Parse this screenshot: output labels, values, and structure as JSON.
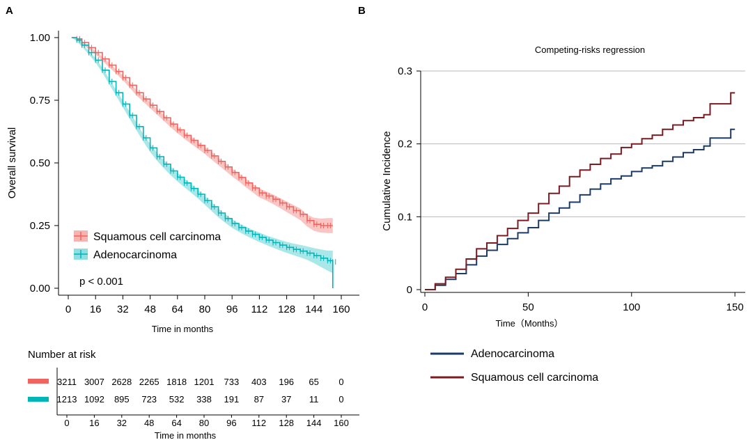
{
  "chart_data": [
    {
      "panel": "A",
      "type": "line",
      "subtype": "kaplan-meier",
      "title": "",
      "xlabel": "Time in months",
      "ylabel": "Overall survival",
      "xlim": [
        0,
        160
      ],
      "ylim": [
        0,
        1
      ],
      "xticks": [
        0,
        16,
        32,
        48,
        64,
        80,
        96,
        112,
        128,
        144,
        160
      ],
      "yticks": [
        0.0,
        0.25,
        0.5,
        0.75,
        1.0
      ],
      "yticklabels": [
        "0.00",
        "0.25",
        "0.50",
        "0.75",
        "1.00"
      ],
      "p_value_text": "p < 0.001",
      "series": [
        {
          "name": "Squamous cell carcinoma",
          "color": "#f0635e",
          "ci_color": "#f7b3b0",
          "x": [
            2,
            5,
            8,
            12,
            16,
            20,
            24,
            28,
            32,
            36,
            40,
            44,
            48,
            52,
            56,
            60,
            64,
            68,
            72,
            76,
            80,
            84,
            88,
            92,
            96,
            100,
            104,
            108,
            112,
            116,
            120,
            124,
            128,
            132,
            136,
            140,
            144,
            148,
            152,
            155
          ],
          "y": [
            1.0,
            0.995,
            0.98,
            0.96,
            0.94,
            0.915,
            0.89,
            0.865,
            0.84,
            0.81,
            0.78,
            0.755,
            0.73,
            0.705,
            0.68,
            0.655,
            0.632,
            0.61,
            0.59,
            0.57,
            0.55,
            0.528,
            0.506,
            0.484,
            0.462,
            0.442,
            0.42,
            0.4,
            0.38,
            0.368,
            0.355,
            0.34,
            0.325,
            0.31,
            0.295,
            0.27,
            0.255,
            0.25,
            0.25,
            0.25
          ],
          "ci_halfwidth": [
            0.0,
            0.004,
            0.005,
            0.006,
            0.007,
            0.008,
            0.009,
            0.009,
            0.01,
            0.01,
            0.011,
            0.011,
            0.012,
            0.012,
            0.012,
            0.013,
            0.013,
            0.013,
            0.014,
            0.014,
            0.014,
            0.015,
            0.015,
            0.015,
            0.016,
            0.016,
            0.017,
            0.017,
            0.018,
            0.018,
            0.019,
            0.02,
            0.021,
            0.022,
            0.023,
            0.024,
            0.026,
            0.028,
            0.03,
            0.03
          ]
        },
        {
          "name": "Adenocarcinoma",
          "color": "#00b4b8",
          "ci_color": "#8ddfe1",
          "x": [
            2,
            5,
            8,
            12,
            16,
            20,
            24,
            28,
            32,
            36,
            40,
            44,
            48,
            52,
            56,
            60,
            64,
            68,
            72,
            76,
            80,
            84,
            88,
            92,
            96,
            100,
            104,
            108,
            112,
            116,
            120,
            124,
            128,
            132,
            136,
            140,
            144,
            148,
            152,
            155,
            155
          ],
          "y": [
            1.0,
            0.99,
            0.97,
            0.94,
            0.91,
            0.87,
            0.825,
            0.78,
            0.735,
            0.69,
            0.645,
            0.6,
            0.56,
            0.525,
            0.495,
            0.468,
            0.443,
            0.42,
            0.398,
            0.375,
            0.35,
            0.325,
            0.3,
            0.278,
            0.258,
            0.242,
            0.228,
            0.215,
            0.203,
            0.192,
            0.182,
            0.172,
            0.163,
            0.155,
            0.148,
            0.14,
            0.13,
            0.12,
            0.11,
            0.105,
            0.0
          ],
          "ci_halfwidth": [
            0.0,
            0.005,
            0.006,
            0.007,
            0.009,
            0.01,
            0.011,
            0.012,
            0.013,
            0.014,
            0.015,
            0.015,
            0.016,
            0.016,
            0.016,
            0.017,
            0.017,
            0.017,
            0.017,
            0.017,
            0.017,
            0.017,
            0.017,
            0.017,
            0.017,
            0.017,
            0.018,
            0.018,
            0.019,
            0.019,
            0.02,
            0.021,
            0.022,
            0.023,
            0.025,
            0.027,
            0.03,
            0.035,
            0.04,
            0.045,
            0.0
          ]
        }
      ],
      "risk_table": {
        "title": "Number at risk",
        "xlabel": "Time in months",
        "times": [
          0,
          16,
          32,
          48,
          64,
          80,
          96,
          112,
          128,
          144,
          160
        ],
        "rows": [
          {
            "name": "Squamous cell carcinoma",
            "color": "#f0635e",
            "values": [
              "3211",
              "3007",
              "2628",
              "2265",
              "1818",
              "1201",
              "733",
              "403",
              "196",
              "65",
              "0"
            ]
          },
          {
            "name": "Adenocarcinoma",
            "color": "#00b4b8",
            "values": [
              "1213",
              "1092",
              "895",
              "723",
              "532",
              "338",
              "191",
              "87",
              "37",
              "11",
              "0"
            ]
          }
        ]
      }
    },
    {
      "panel": "B",
      "type": "line",
      "subtype": "step",
      "title": "Competing-risks regression",
      "xlabel": "Time（Months）",
      "ylabel": "Cumulative Incidence",
      "xlim": [
        0,
        155
      ],
      "ylim": [
        0,
        0.3
      ],
      "xticks": [
        0,
        50,
        100,
        150
      ],
      "yticks": [
        0,
        0.1,
        0.2,
        0.3
      ],
      "yticklabels": [
        "0",
        "0.1",
        "0.2",
        "0.3"
      ],
      "grid": "horizontal",
      "series": [
        {
          "name": "Adenocarcinoma",
          "color": "#1b3a66",
          "x": [
            0,
            5,
            10,
            15,
            20,
            25,
            30,
            35,
            40,
            45,
            50,
            55,
            60,
            65,
            70,
            75,
            80,
            85,
            90,
            95,
            100,
            105,
            110,
            115,
            120,
            125,
            130,
            135,
            138,
            140,
            145,
            148,
            150
          ],
          "y": [
            0,
            0.006,
            0.014,
            0.022,
            0.034,
            0.046,
            0.054,
            0.062,
            0.07,
            0.078,
            0.085,
            0.095,
            0.105,
            0.112,
            0.12,
            0.13,
            0.138,
            0.145,
            0.152,
            0.156,
            0.162,
            0.167,
            0.17,
            0.176,
            0.182,
            0.188,
            0.192,
            0.197,
            0.208,
            0.208,
            0.208,
            0.22,
            0.22
          ]
        },
        {
          "name": "Squamous cell carcinoma",
          "color": "#7b1b20",
          "x": [
            0,
            5,
            10,
            15,
            20,
            25,
            30,
            35,
            40,
            45,
            50,
            55,
            60,
            65,
            70,
            75,
            80,
            85,
            90,
            95,
            100,
            105,
            110,
            115,
            120,
            125,
            130,
            135,
            138,
            140,
            145,
            148,
            150
          ],
          "y": [
            0,
            0.008,
            0.017,
            0.028,
            0.042,
            0.056,
            0.064,
            0.074,
            0.084,
            0.095,
            0.105,
            0.118,
            0.132,
            0.142,
            0.155,
            0.164,
            0.172,
            0.18,
            0.186,
            0.195,
            0.2,
            0.207,
            0.212,
            0.22,
            0.226,
            0.232,
            0.236,
            0.24,
            0.255,
            0.255,
            0.255,
            0.27,
            0.27
          ]
        }
      ],
      "legend": [
        {
          "label": "Adenocarcinoma",
          "color": "#1b3a66"
        },
        {
          "label": "Squamous cell carcinoma",
          "color": "#7b1b20"
        }
      ]
    }
  ]
}
